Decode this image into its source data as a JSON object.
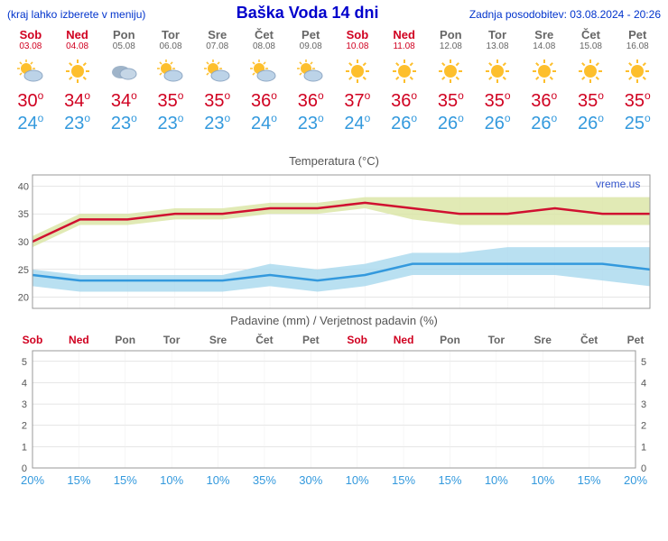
{
  "header": {
    "hint": "(kraj lahko izberete v meniju)",
    "title": "Baška Voda 14 dni",
    "updated_label": "Zadnja posodobitev: 03.08.2024 - 20:26"
  },
  "days": [
    {
      "dow": "Sob",
      "date": "03.08",
      "weekend": true,
      "icon": "partly",
      "hi": 30,
      "lo": 24,
      "precip_prob": 20
    },
    {
      "dow": "Ned",
      "date": "04.08",
      "weekend": true,
      "icon": "sunny",
      "hi": 34,
      "lo": 23,
      "precip_prob": 15
    },
    {
      "dow": "Pon",
      "date": "05.08",
      "weekend": false,
      "icon": "cloudy",
      "hi": 34,
      "lo": 23,
      "precip_prob": 15
    },
    {
      "dow": "Tor",
      "date": "06.08",
      "weekend": false,
      "icon": "partly",
      "hi": 35,
      "lo": 23,
      "precip_prob": 10
    },
    {
      "dow": "Sre",
      "date": "07.08",
      "weekend": false,
      "icon": "partly",
      "hi": 35,
      "lo": 23,
      "precip_prob": 10
    },
    {
      "dow": "Čet",
      "date": "08.08",
      "weekend": false,
      "icon": "partly",
      "hi": 36,
      "lo": 24,
      "precip_prob": 35
    },
    {
      "dow": "Pet",
      "date": "09.08",
      "weekend": false,
      "icon": "partly",
      "hi": 36,
      "lo": 23,
      "precip_prob": 30
    },
    {
      "dow": "Sob",
      "date": "10.08",
      "weekend": true,
      "icon": "sunny",
      "hi": 37,
      "lo": 24,
      "precip_prob": 10
    },
    {
      "dow": "Ned",
      "date": "11.08",
      "weekend": true,
      "icon": "sunny",
      "hi": 36,
      "lo": 26,
      "precip_prob": 15
    },
    {
      "dow": "Pon",
      "date": "12.08",
      "weekend": false,
      "icon": "sunny",
      "hi": 35,
      "lo": 26,
      "precip_prob": 15
    },
    {
      "dow": "Tor",
      "date": "13.08",
      "weekend": false,
      "icon": "sunny",
      "hi": 35,
      "lo": 26,
      "precip_prob": 10
    },
    {
      "dow": "Sre",
      "date": "14.08",
      "weekend": false,
      "icon": "sunny",
      "hi": 36,
      "lo": 26,
      "precip_prob": 10
    },
    {
      "dow": "Čet",
      "date": "15.08",
      "weekend": false,
      "icon": "sunny",
      "hi": 35,
      "lo": 26,
      "precip_prob": 15
    },
    {
      "dow": "Pet",
      "date": "16.08",
      "weekend": false,
      "icon": "sunny",
      "hi": 35,
      "lo": 25,
      "precip_prob": 20
    }
  ],
  "temp_chart": {
    "title": "Temperatura (°C)",
    "watermark": "vreme.us",
    "ylim": [
      18,
      42
    ],
    "yticks": [
      20,
      25,
      30,
      35,
      40
    ],
    "hi_band_upper": [
      31,
      35,
      35,
      36,
      36,
      37,
      37,
      38,
      38,
      38,
      38,
      38,
      38,
      38
    ],
    "hi_band_lower": [
      29,
      33,
      33,
      34,
      34,
      35,
      35,
      36,
      34,
      33,
      33,
      33,
      33,
      33
    ],
    "hi_line": [
      30,
      34,
      34,
      35,
      35,
      36,
      36,
      37,
      36,
      35,
      35,
      36,
      35,
      35
    ],
    "lo_band_upper": [
      25,
      24,
      24,
      24,
      24,
      26,
      25,
      26,
      28,
      28,
      29,
      29,
      29,
      29
    ],
    "lo_band_lower": [
      22,
      21,
      21,
      21,
      21,
      22,
      21,
      22,
      24,
      24,
      24,
      24,
      23,
      22
    ],
    "lo_line": [
      24,
      23,
      23,
      23,
      23,
      24,
      23,
      24,
      26,
      26,
      26,
      26,
      26,
      25
    ],
    "colors": {
      "hi_band": "#d9e5a3",
      "hi_line": "#d01030",
      "lo_band": "#a8d8ee",
      "lo_line": "#3399dd",
      "grid": "#cccccc",
      "axis": "#999999",
      "watermark": "#3355cc"
    }
  },
  "precip_chart": {
    "title": "Padavine (mm) / Verjetnost padavin (%)",
    "ylim": [
      0,
      5.5
    ],
    "yticks": [
      0,
      1,
      2,
      3,
      4,
      5
    ],
    "prob_color": "#3399dd",
    "grid": "#cccccc",
    "axis": "#999999"
  }
}
